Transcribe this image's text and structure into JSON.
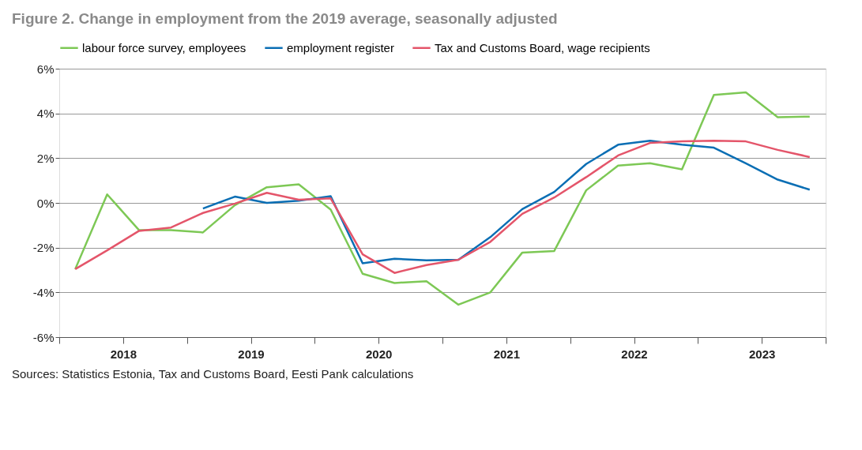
{
  "chart_data": {
    "type": "line",
    "title": "Figure 2. Change in employment from the 2019 average, seasonally adjusted",
    "x": [
      2018.125,
      2018.375,
      2018.625,
      2018.875,
      2019.125,
      2019.375,
      2019.625,
      2019.875,
      2020.125,
      2020.375,
      2020.625,
      2020.875,
      2021.125,
      2021.375,
      2021.625,
      2021.875,
      2022.125,
      2022.375,
      2022.625,
      2022.875,
      2023.125,
      2023.375,
      2023.625,
      2023.875
    ],
    "series": [
      {
        "name": "labour force survey, employees",
        "color": "#7dc855",
        "values": [
          -2.96,
          0.38,
          -1.22,
          -1.22,
          -1.32,
          -0.1,
          0.7,
          0.83,
          -0.3,
          -3.17,
          -3.58,
          -3.5,
          -4.55,
          -4.0,
          -2.22,
          -2.15,
          0.56,
          1.67,
          1.77,
          1.5,
          4.83,
          4.94,
          3.83,
          3.86
        ]
      },
      {
        "name": "employment register",
        "color": "#0a6eb4",
        "values": [
          null,
          null,
          null,
          null,
          -0.25,
          0.28,
          0.0,
          0.1,
          0.3,
          -2.7,
          -2.5,
          -2.57,
          -2.54,
          -1.53,
          -0.28,
          0.49,
          1.74,
          2.6,
          2.78,
          2.6,
          2.47,
          1.77,
          1.04,
          0.59
        ]
      },
      {
        "name": "Tax and Customs Board, wage recipients",
        "color": "#e4556a",
        "values": [
          -2.96,
          -2.12,
          -1.25,
          -1.1,
          -0.45,
          -0.03,
          0.45,
          0.14,
          0.2,
          -2.3,
          -3.13,
          -2.78,
          -2.54,
          -1.74,
          -0.49,
          0.24,
          1.15,
          2.12,
          2.68,
          2.75,
          2.78,
          2.75,
          2.37,
          2.05
        ]
      }
    ],
    "xlim": [
      2018,
      2024
    ],
    "xticks": [
      {
        "value": 2018,
        "label": null
      },
      {
        "value": 2018.5,
        "label": "2018"
      },
      {
        "value": 2019,
        "label": null
      },
      {
        "value": 2019.5,
        "label": "2019"
      },
      {
        "value": 2020,
        "label": null
      },
      {
        "value": 2020.5,
        "label": "2020"
      },
      {
        "value": 2021,
        "label": null
      },
      {
        "value": 2021.5,
        "label": "2021"
      },
      {
        "value": 2022,
        "label": null
      },
      {
        "value": 2022.5,
        "label": "2022"
      },
      {
        "value": 2023,
        "label": null
      },
      {
        "value": 2023.5,
        "label": "2023"
      },
      {
        "value": 2024,
        "label": null
      }
    ],
    "ylim": [
      -6,
      6
    ],
    "yticks": [
      {
        "value": -6,
        "label": "-6%"
      },
      {
        "value": -4,
        "label": "-4%"
      },
      {
        "value": -2,
        "label": "-2%"
      },
      {
        "value": 0,
        "label": "0%"
      },
      {
        "value": 2,
        "label": "2%"
      },
      {
        "value": 4,
        "label": "4%"
      },
      {
        "value": 6,
        "label": "6%"
      }
    ],
    "grid": "y",
    "legend": "top",
    "line_style": "solid",
    "marker": "none",
    "annotations": [
      "Sources: Statistics Estonia, Tax and Customs Board, Eesti Pank calculations"
    ]
  }
}
